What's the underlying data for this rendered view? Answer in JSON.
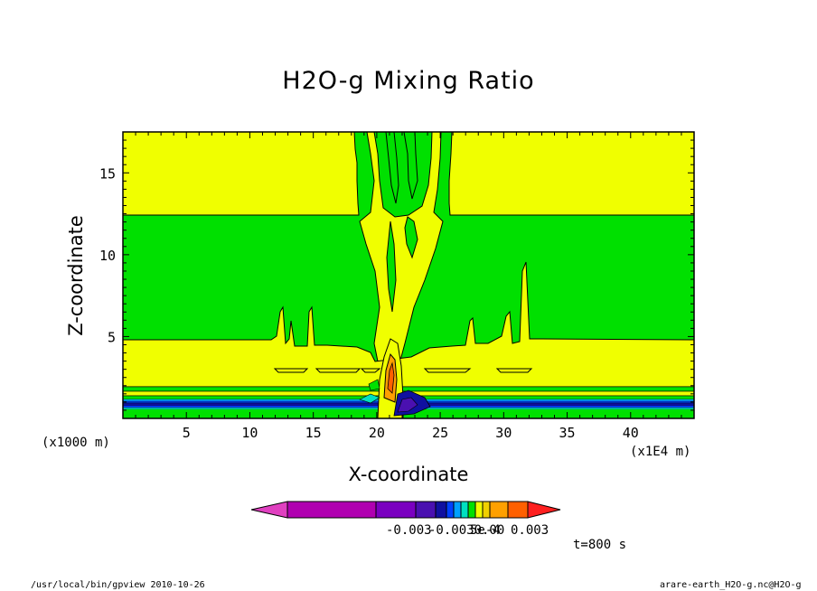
{
  "chart_data": {
    "type": "heatmap",
    "title": "H2O-g Mixing Ratio",
    "xlabel": "X-coordinate",
    "ylabel": "Z-coordinate",
    "x_unit_left": "(x1000 m)",
    "x_unit_right": "(x1E4 m)",
    "xlim": [
      0,
      45
    ],
    "ylim": [
      0,
      17.5
    ],
    "x_ticks": [
      5,
      10,
      15,
      20,
      25,
      30,
      35,
      40
    ],
    "y_ticks": [
      5,
      10,
      15
    ],
    "colorbar": {
      "colors": [
        "#e040c0",
        "#b000b0",
        "#7a00c0",
        "#4a10b0",
        "#1010a0",
        "#0040ff",
        "#00a0ff",
        "#00e0c0",
        "#00e000",
        "#f0ff00",
        "#f0d000",
        "#ffa000",
        "#ff6000",
        "#ff2020"
      ],
      "labels": [
        "-0.003",
        "-0.0030.00",
        "5e-4",
        "0.003"
      ]
    },
    "time_label": "t=800 s",
    "footer_left": "/usr/local/bin/gpview  2010-10-26",
    "footer_right": "arare-earth_H2O-g.nc@H2O-g"
  }
}
